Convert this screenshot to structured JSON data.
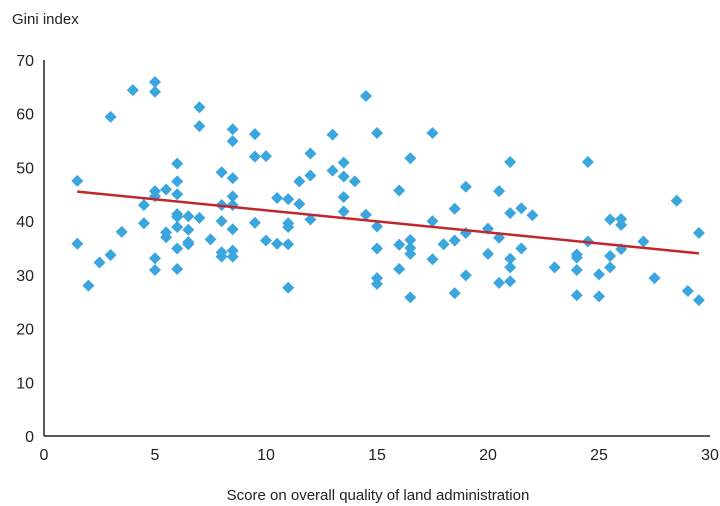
{
  "chart_data": {
    "type": "scatter",
    "title": "",
    "ylabel": "Gini index",
    "xlabel": "Score on overall quality of land administration",
    "xlim": [
      0,
      30
    ],
    "ylim": [
      0,
      70
    ],
    "xticks": [
      0,
      5,
      10,
      15,
      20,
      25,
      30
    ],
    "yticks": [
      0,
      10,
      20,
      30,
      40,
      50,
      60,
      70
    ],
    "grid": false,
    "legend": "none",
    "colors": {
      "points": "#3aa6dd",
      "trendline": "#c0272d",
      "axis": "#222222"
    },
    "series": [
      {
        "points": [
          [
            1.5,
            47.5
          ],
          [
            1.5,
            35.8
          ],
          [
            2,
            28
          ],
          [
            2.5,
            32.3
          ],
          [
            3,
            33.7
          ],
          [
            3,
            59.4
          ],
          [
            3.5,
            38
          ],
          [
            4,
            64.4
          ],
          [
            4.5,
            43
          ],
          [
            4.5,
            39.6
          ],
          [
            5,
            65.9
          ],
          [
            5,
            64.1
          ],
          [
            5,
            45.6
          ],
          [
            5,
            44.6
          ],
          [
            5,
            33.1
          ],
          [
            5,
            30.9
          ],
          [
            5.5,
            45.9
          ],
          [
            5.5,
            37.9
          ],
          [
            5.5,
            37
          ],
          [
            6,
            50.7
          ],
          [
            6,
            47.4
          ],
          [
            6,
            45
          ],
          [
            6,
            41.3
          ],
          [
            6,
            40.8
          ],
          [
            6,
            38.9
          ],
          [
            6,
            34.9
          ],
          [
            6,
            31.1
          ],
          [
            6.5,
            40.9
          ],
          [
            6.5,
            38.4
          ],
          [
            6.5,
            36.1
          ],
          [
            6.5,
            35.7
          ],
          [
            7,
            61.2
          ],
          [
            7,
            57.7
          ],
          [
            7,
            40.6
          ],
          [
            7.5,
            36.6
          ],
          [
            8,
            49.1
          ],
          [
            8,
            43
          ],
          [
            8,
            40
          ],
          [
            8,
            34.2
          ],
          [
            8,
            33.4
          ],
          [
            8.5,
            57.1
          ],
          [
            8.5,
            54.9
          ],
          [
            8.5,
            48
          ],
          [
            8.5,
            44.6
          ],
          [
            8.5,
            43
          ],
          [
            8.5,
            38.5
          ],
          [
            8.5,
            34.5
          ],
          [
            8.5,
            33.4
          ],
          [
            9.5,
            56.2
          ],
          [
            9.5,
            52
          ],
          [
            9.5,
            39.7
          ],
          [
            10,
            52.1
          ],
          [
            10,
            36.4
          ],
          [
            10.5,
            44.3
          ],
          [
            10.5,
            35.8
          ],
          [
            11,
            44.1
          ],
          [
            11,
            39.6
          ],
          [
            11,
            38.9
          ],
          [
            11,
            35.7
          ],
          [
            11,
            27.6
          ],
          [
            11.5,
            47.4
          ],
          [
            11.5,
            43.2
          ],
          [
            12,
            52.6
          ],
          [
            12,
            48.5
          ],
          [
            12,
            40.3
          ],
          [
            13,
            56.1
          ],
          [
            13,
            49.4
          ],
          [
            13.5,
            50.9
          ],
          [
            13.5,
            48.3
          ],
          [
            13.5,
            44.5
          ],
          [
            13.5,
            41.8
          ],
          [
            14,
            47.4
          ],
          [
            14.5,
            63.3
          ],
          [
            14.5,
            41.2
          ],
          [
            15,
            56.4
          ],
          [
            15,
            39
          ],
          [
            15,
            34.9
          ],
          [
            15,
            29.4
          ],
          [
            15,
            28.3
          ],
          [
            16,
            45.7
          ],
          [
            16,
            35.6
          ],
          [
            16,
            31.1
          ],
          [
            16.5,
            51.7
          ],
          [
            16.5,
            36.5
          ],
          [
            16.5,
            35
          ],
          [
            16.5,
            33.9
          ],
          [
            16.5,
            25.8
          ],
          [
            17.5,
            56.4
          ],
          [
            17.5,
            40
          ],
          [
            17.5,
            32.9
          ],
          [
            18,
            35.7
          ],
          [
            18.5,
            42.3
          ],
          [
            18.5,
            36.4
          ],
          [
            18.5,
            26.6
          ],
          [
            19,
            46.4
          ],
          [
            19,
            37.8
          ],
          [
            19,
            29.9
          ],
          [
            20,
            38.6
          ],
          [
            20,
            33.9
          ],
          [
            20.5,
            45.6
          ],
          [
            20.5,
            36.9
          ],
          [
            20.5,
            28.5
          ],
          [
            21,
            51
          ],
          [
            21,
            41.5
          ],
          [
            21,
            33
          ],
          [
            21,
            31.4
          ],
          [
            21,
            28.8
          ],
          [
            21.5,
            42.4
          ],
          [
            21.5,
            34.9
          ],
          [
            22,
            41.1
          ],
          [
            23,
            31.4
          ],
          [
            24,
            33.8
          ],
          [
            24,
            33.2
          ],
          [
            24,
            30.9
          ],
          [
            24,
            26.2
          ],
          [
            24.5,
            51
          ],
          [
            24.5,
            36.2
          ],
          [
            25,
            30.1
          ],
          [
            25,
            26
          ],
          [
            25.5,
            40.3
          ],
          [
            25.5,
            33.5
          ],
          [
            25.5,
            31.4
          ],
          [
            26,
            40.4
          ],
          [
            26,
            39.3
          ],
          [
            26,
            34.8
          ],
          [
            27,
            36.2
          ],
          [
            27.5,
            29.4
          ],
          [
            28.5,
            43.8
          ],
          [
            29,
            27
          ],
          [
            29.5,
            37.8
          ],
          [
            29.5,
            25.3
          ]
        ]
      }
    ],
    "trendline": {
      "x": [
        1.5,
        29.5
      ],
      "y": [
        45.5,
        34
      ]
    }
  }
}
